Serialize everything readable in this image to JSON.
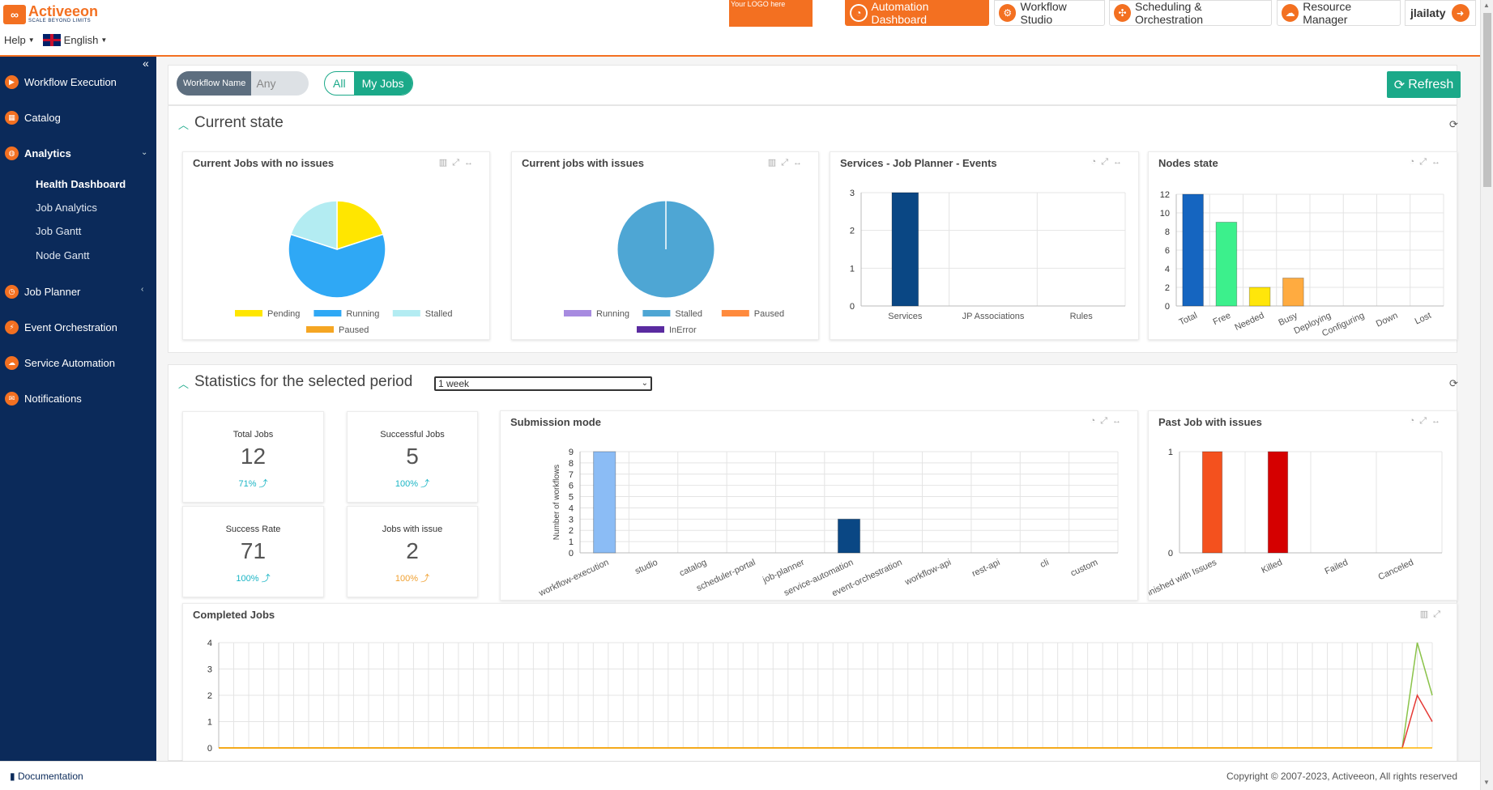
{
  "header": {
    "brand_name": "Activeeon",
    "brand_tagline": "SCALE BEYOND LIMITS",
    "help_label": "Help",
    "language_label": "English",
    "logo_placeholder": "Your LOGO here",
    "nav": [
      {
        "label": "Automation Dashboard",
        "icon": "gauge-icon"
      },
      {
        "label": "Workflow Studio",
        "icon": "studio-icon"
      },
      {
        "label": "Scheduling & Orchestration",
        "icon": "scheduler-icon"
      },
      {
        "label": "Resource Manager",
        "icon": "cloud-icon"
      }
    ],
    "username": "jlailaty"
  },
  "sidebar": {
    "items": [
      {
        "label": "Workflow Execution",
        "icon": "workflow-execution-icon"
      },
      {
        "label": "Catalog",
        "icon": "catalog-icon"
      },
      {
        "label": "Analytics",
        "icon": "analytics-icon"
      },
      {
        "label": "Job Planner",
        "icon": "clock-icon"
      },
      {
        "label": "Event Orchestration",
        "icon": "event-icon"
      },
      {
        "label": "Service Automation",
        "icon": "service-icon"
      },
      {
        "label": "Notifications",
        "icon": "bell-icon"
      }
    ],
    "analytics_sub": [
      "Health Dashboard",
      "Job Analytics",
      "Job Gantt",
      "Node Gantt"
    ]
  },
  "filters": {
    "workflow_name_label": "Workflow Name",
    "workflow_name_placeholder": "Any",
    "toggle_all": "All",
    "toggle_my": "My Jobs",
    "refresh_label": "Refresh"
  },
  "current_state": {
    "title": "Current state",
    "widgets": {
      "no_issues": "Current Jobs with no issues",
      "with_issues": "Current jobs with issues",
      "services": "Services - Job Planner - Events",
      "nodes": "Nodes state"
    }
  },
  "statistics": {
    "title": "Statistics for the selected period",
    "period": "1 week",
    "cards": [
      {
        "label": "Total Jobs",
        "value": "12",
        "pct": "71% ⤴",
        "color": "#1ab5c5"
      },
      {
        "label": "Successful Jobs",
        "value": "5",
        "pct": "100% ⤴",
        "color": "#1ab5c5"
      },
      {
        "label": "Success Rate",
        "value": "71",
        "pct": "100% ⤴",
        "color": "#1ab5c5"
      },
      {
        "label": "Jobs with issue",
        "value": "2",
        "pct": "100% ⤴",
        "color": "#f0a030"
      }
    ],
    "widgets": {
      "submission": "Submission mode",
      "past_issues": "Past Job with issues",
      "completed": "Completed Jobs"
    }
  },
  "footer": {
    "doc_label": "Documentation",
    "copyright": "Copyright © 2007-2023, Activeeon, All rights reserved"
  },
  "chart_data": [
    {
      "type": "pie",
      "title": "Current Jobs with no issues",
      "categories": [
        "Pending",
        "Running",
        "Stalled",
        "Paused"
      ],
      "values": [
        2,
        6,
        2,
        0
      ],
      "colors": [
        "#ffe600",
        "#2fa8f5",
        "#b3ecf2",
        "#f5a623"
      ]
    },
    {
      "type": "pie",
      "title": "Current jobs with issues",
      "categories": [
        "Running",
        "Stalled",
        "Paused",
        "InError"
      ],
      "values": [
        0,
        1,
        0,
        0
      ],
      "colors": [
        "#a78be0",
        "#4ea6d4",
        "#ff8a3d",
        "#5a2ba0"
      ]
    },
    {
      "type": "bar",
      "title": "Services - Job Planner - Events",
      "categories": [
        "Services",
        "JP Associations",
        "Rules"
      ],
      "values": [
        3,
        0,
        0
      ],
      "ylim": [
        0,
        3
      ],
      "yticks": [
        0,
        1,
        2,
        3
      ],
      "colors": [
        "#0a4784"
      ]
    },
    {
      "type": "bar",
      "title": "Nodes state",
      "categories": [
        "Total",
        "Free",
        "Needed",
        "Busy",
        "Deploying",
        "Configuring",
        "Down",
        "Lost"
      ],
      "values": [
        12,
        9,
        2,
        3,
        0,
        0,
        0,
        0
      ],
      "ylim": [
        0,
        12
      ],
      "yticks": [
        0,
        2,
        4,
        6,
        8,
        10,
        12
      ],
      "colors": [
        "#1565c0",
        "#3cf08c",
        "#ffe60a",
        "#ffab40",
        "#999",
        "#999",
        "#999",
        "#999"
      ]
    },
    {
      "type": "bar",
      "title": "Submission mode",
      "ylabel": "Number of workflows",
      "categories": [
        "workflow-execution",
        "studio",
        "catalog",
        "scheduler-portal",
        "job-planner",
        "service-automation",
        "event-orchestration",
        "workflow-api",
        "rest-api",
        "cli",
        "custom"
      ],
      "values": [
        9,
        0,
        0,
        0,
        0,
        3,
        0,
        0,
        0,
        0,
        0
      ],
      "ylim": [
        0,
        9
      ],
      "yticks": [
        0,
        1,
        2,
        3,
        4,
        5,
        6,
        7,
        8,
        9
      ],
      "colors": [
        "#8bbcf5",
        "#999",
        "#999",
        "#999",
        "#999",
        "#0a4784",
        "#999",
        "#999",
        "#999",
        "#999",
        "#999"
      ]
    },
    {
      "type": "bar",
      "title": "Past Job with issues",
      "categories": [
        "Finished with Issues",
        "Killed",
        "Failed",
        "Canceled"
      ],
      "values": [
        1,
        1,
        0,
        0
      ],
      "ylim": [
        0,
        1
      ],
      "yticks": [
        0,
        1
      ],
      "colors": [
        "#f4511e",
        "#d50000",
        "#999",
        "#999"
      ]
    },
    {
      "type": "line",
      "title": "Completed Jobs",
      "ylim": [
        0,
        4
      ],
      "yticks": [
        0,
        1,
        2,
        3,
        4
      ],
      "series": [
        {
          "color": "#8bc34a",
          "values": [
            0,
            0,
            0,
            0,
            0,
            0,
            0,
            0,
            0,
            0,
            0,
            0,
            0,
            0,
            0,
            0,
            0,
            0,
            0,
            0,
            0,
            0,
            0,
            0,
            0,
            0,
            0,
            0,
            0,
            0,
            0,
            0,
            0,
            0,
            0,
            0,
            0,
            0,
            0,
            0,
            0,
            0,
            0,
            0,
            0,
            0,
            0,
            0,
            0,
            0,
            0,
            0,
            0,
            0,
            0,
            0,
            0,
            0,
            0,
            0,
            0,
            0,
            0,
            0,
            0,
            0,
            0,
            0,
            0,
            0,
            0,
            0,
            0,
            0,
            0,
            0,
            0,
            0,
            0,
            0,
            4,
            2
          ]
        },
        {
          "color": "#e53935",
          "values": [
            0,
            0,
            0,
            0,
            0,
            0,
            0,
            0,
            0,
            0,
            0,
            0,
            0,
            0,
            0,
            0,
            0,
            0,
            0,
            0,
            0,
            0,
            0,
            0,
            0,
            0,
            0,
            0,
            0,
            0,
            0,
            0,
            0,
            0,
            0,
            0,
            0,
            0,
            0,
            0,
            0,
            0,
            0,
            0,
            0,
            0,
            0,
            0,
            0,
            0,
            0,
            0,
            0,
            0,
            0,
            0,
            0,
            0,
            0,
            0,
            0,
            0,
            0,
            0,
            0,
            0,
            0,
            0,
            0,
            0,
            0,
            0,
            0,
            0,
            0,
            0,
            0,
            0,
            0,
            0,
            2,
            1
          ]
        },
        {
          "color": "#ffb300",
          "values": [
            0,
            0,
            0,
            0,
            0,
            0,
            0,
            0,
            0,
            0,
            0,
            0,
            0,
            0,
            0,
            0,
            0,
            0,
            0,
            0,
            0,
            0,
            0,
            0,
            0,
            0,
            0,
            0,
            0,
            0,
            0,
            0,
            0,
            0,
            0,
            0,
            0,
            0,
            0,
            0,
            0,
            0,
            0,
            0,
            0,
            0,
            0,
            0,
            0,
            0,
            0,
            0,
            0,
            0,
            0,
            0,
            0,
            0,
            0,
            0,
            0,
            0,
            0,
            0,
            0,
            0,
            0,
            0,
            0,
            0,
            0,
            0,
            0,
            0,
            0,
            0,
            0,
            0,
            0,
            0,
            0,
            0
          ]
        }
      ]
    }
  ]
}
